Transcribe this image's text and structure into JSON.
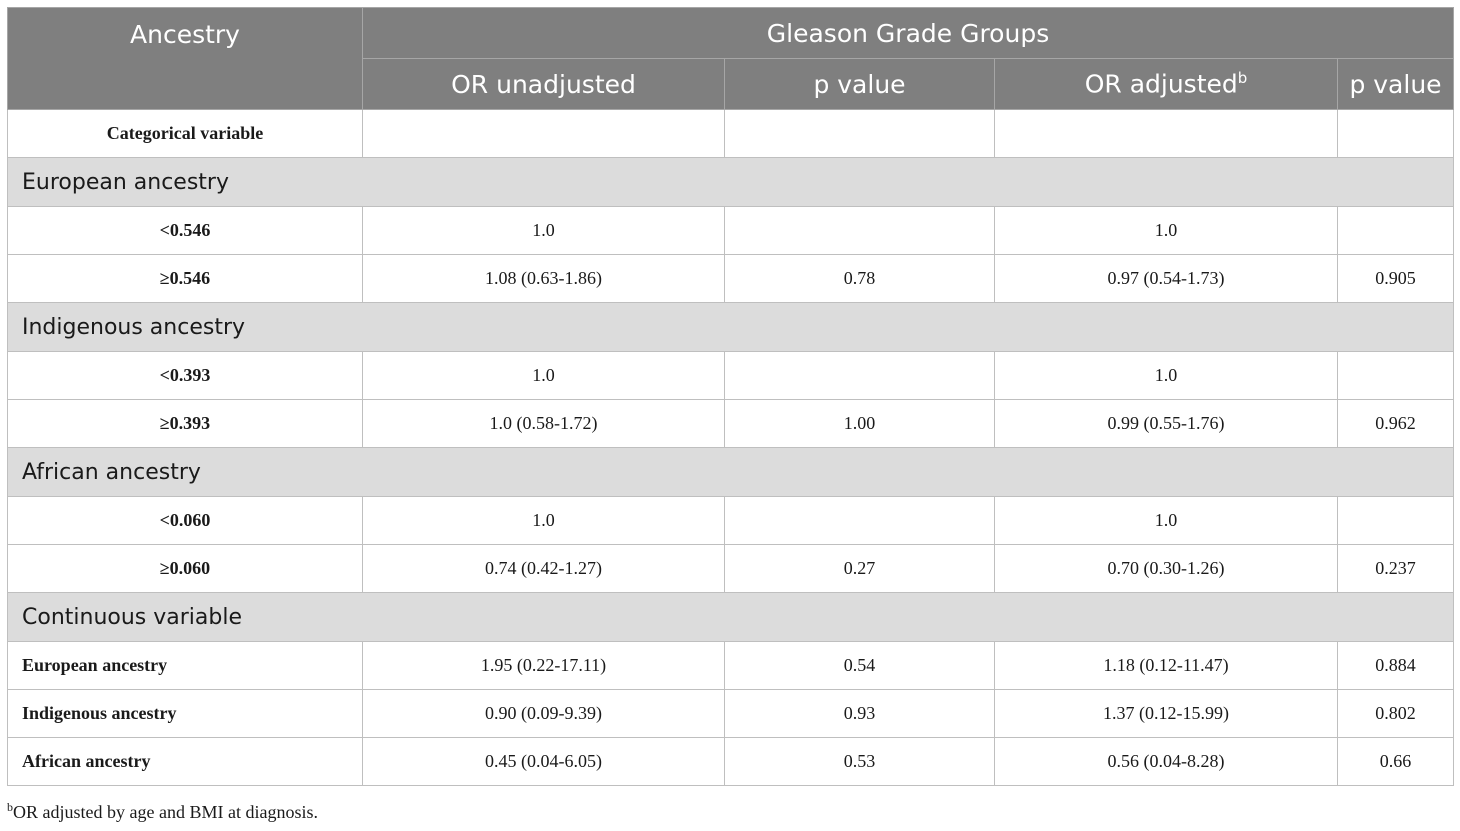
{
  "header": {
    "ancestry": "Ancestry",
    "group": "Gleason Grade Groups",
    "or_unadjusted": "OR unadjusted",
    "p_value_1": "p value",
    "or_adjusted": "OR adjusted",
    "or_adjusted_sup": "b",
    "p_value_2": "p value"
  },
  "categorical_label": "Categorical variable",
  "sections": {
    "european": {
      "title": "European ancestry",
      "rows": [
        {
          "label": "<0.546",
          "or_u": "1.0",
          "p1": "",
          "or_a": "1.0",
          "p2": ""
        },
        {
          "label": "≥0.546",
          "or_u": "1.08 (0.63-1.86)",
          "p1": "0.78",
          "or_a": "0.97 (0.54-1.73)",
          "p2": "0.905"
        }
      ]
    },
    "indigenous": {
      "title": "Indigenous ancestry",
      "rows": [
        {
          "label": "<0.393",
          "or_u": "1.0",
          "p1": "",
          "or_a": "1.0",
          "p2": ""
        },
        {
          "label": "≥0.393",
          "or_u": "1.0 (0.58-1.72)",
          "p1": "1.00",
          "or_a": "0.99 (0.55-1.76)",
          "p2": "0.962"
        }
      ]
    },
    "african": {
      "title": "African ancestry",
      "rows": [
        {
          "label": "<0.060",
          "or_u": "1.0",
          "p1": "",
          "or_a": "1.0",
          "p2": ""
        },
        {
          "label": "≥0.060",
          "or_u": "0.74 (0.42-1.27)",
          "p1": "0.27",
          "or_a": "0.70 (0.30-1.26)",
          "p2": "0.237"
        }
      ]
    },
    "continuous": {
      "title": "Continuous variable",
      "rows": [
        {
          "label": "European ancestry",
          "or_u": "1.95 (0.22-17.11)",
          "p1": "0.54",
          "or_a": "1.18 (0.12-11.47)",
          "p2": "0.884"
        },
        {
          "label": "Indigenous ancestry",
          "or_u": "0.90 (0.09-9.39)",
          "p1": "0.93",
          "or_a": "1.37 (0.12-15.99)",
          "p2": "0.802"
        },
        {
          "label": "African ancestry",
          "or_u": "0.45 (0.04-6.05)",
          "p1": "0.53",
          "or_a": "0.56 (0.04-8.28)",
          "p2": "0.66"
        }
      ]
    }
  },
  "footnote": {
    "sup": "b",
    "text": "OR adjusted by age and BMI at diagnosis."
  }
}
